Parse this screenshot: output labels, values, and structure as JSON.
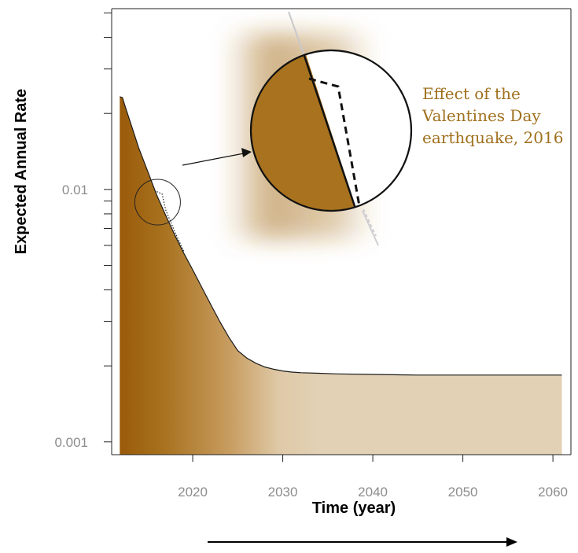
{
  "colors": {
    "brown_dark": "#9a5b0a",
    "brown_mid": "#a8721f",
    "tan_light": "#e2d1b5",
    "annotation": "#a0701e",
    "tick_label": "#8c8c8c"
  },
  "chart_data": {
    "type": "area",
    "title": "",
    "xlabel": "Time (year)",
    "ylabel": "Expected Annual Rate",
    "x_scale": "linear",
    "y_scale": "log",
    "xlim": [
      2011,
      2062
    ],
    "ylim": [
      0.00089,
      0.052
    ],
    "x_ticks": [
      2020,
      2030,
      2040,
      2050,
      2060
    ],
    "x_tick_labels": [
      "2020",
      "2030",
      "2040",
      "2050",
      "2060"
    ],
    "y_ticks": [
      0.001,
      0.01
    ],
    "y_tick_labels": [
      "0.001",
      "0.01"
    ],
    "grid": false,
    "legend": "none",
    "series": [
      {
        "x": [
          2011.9,
          2012.2,
          2012.5,
          2013,
          2014,
          2015,
          2016,
          2017,
          2018,
          2019,
          2020,
          2021,
          2022,
          2023,
          2024,
          2025,
          2026,
          2027,
          2028,
          2029,
          2030,
          2031,
          2032,
          2034,
          2036,
          2040,
          2045,
          2050,
          2055,
          2061
        ],
        "y": [
          0.0233,
          0.0231,
          0.0213,
          0.0188,
          0.0146,
          0.0118,
          0.0095,
          0.0079,
          0.0066,
          0.0056,
          0.0048,
          0.0041,
          0.0035,
          0.003,
          0.0026,
          0.0023,
          0.00215,
          0.00205,
          0.00198,
          0.00194,
          0.00191,
          0.00189,
          0.00188,
          0.00187,
          0.00186,
          0.00185,
          0.00184,
          0.00184,
          0.00184,
          0.00184
        ]
      }
    ],
    "after_event_series": {
      "style": "dotted",
      "x": [
        2016,
        2016.6,
        2017,
        2018,
        2019
      ],
      "y": [
        0.0098,
        0.0096,
        0.0083,
        0.0068,
        0.0057
      ]
    },
    "annotation": {
      "lines": [
        "Effect of the",
        "Valentines Day",
        "earthquake, 2016"
      ]
    },
    "time_arrow": true
  }
}
